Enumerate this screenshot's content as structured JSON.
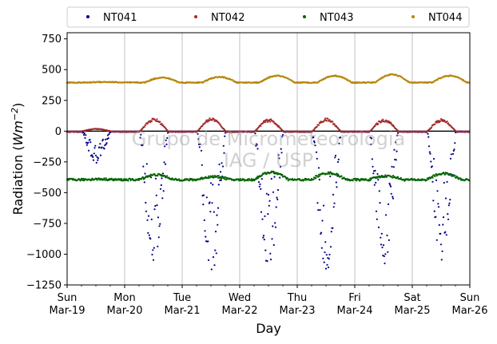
{
  "chart_data": {
    "type": "scatter",
    "title": "",
    "xlabel": "Day",
    "ylabel": "Radiation (Wm^{-2})",
    "ylabel_parts": {
      "main": "Radiation (",
      "unit_base": "Wm",
      "unit_sup": "−2",
      "close": ")"
    },
    "ylim": [
      -1250,
      800
    ],
    "yticks": [
      -1250,
      -1000,
      -750,
      -500,
      -250,
      0,
      250,
      500,
      750
    ],
    "ytick_labels": [
      "−1250",
      "−1000",
      "−750",
      "−500",
      "−250",
      "0",
      "250",
      "500",
      "750"
    ],
    "xlim": [
      "2023-03-19",
      "2023-03-26"
    ],
    "xticks": [
      {
        "date": "2023-03-19",
        "weekday": "Sun",
        "label": "Mar-19"
      },
      {
        "date": "2023-03-20",
        "weekday": "Mon",
        "label": "Mar-20"
      },
      {
        "date": "2023-03-21",
        "weekday": "Tue",
        "label": "Mar-21"
      },
      {
        "date": "2023-03-22",
        "weekday": "Wed",
        "label": "Mar-22"
      },
      {
        "date": "2023-03-23",
        "weekday": "Thu",
        "label": "Mar-23"
      },
      {
        "date": "2023-03-24",
        "weekday": "Fri",
        "label": "Mar-24"
      },
      {
        "date": "2023-03-25",
        "weekday": "Sat",
        "label": "Mar-25"
      },
      {
        "date": "2023-03-26",
        "weekday": "Sun",
        "label": "Mar-26"
      }
    ],
    "grid": "vertical",
    "legend_placement": "top",
    "zero_line": true,
    "series": [
      {
        "name": "NT041",
        "color": "#00008b",
        "daily_min": [
          -260,
          -1070,
          -1180,
          -1130,
          -1150,
          -1080,
          -1050
        ]
      },
      {
        "name": "NT042",
        "color": "#a52a2a",
        "daily_max": [
          20,
          105,
          110,
          100,
          105,
          100,
          100
        ]
      },
      {
        "name": "NT043",
        "color": "#006400",
        "daily_max": [
          -390,
          -355,
          -370,
          -335,
          -340,
          -365,
          -345
        ]
      },
      {
        "name": "NT044",
        "color": "#b8860b",
        "daily_max": [
          400,
          435,
          440,
          450,
          450,
          460,
          450
        ]
      }
    ],
    "watermark": [
      "Grupo de Micrometeorologia",
      "IAG / USP"
    ]
  }
}
